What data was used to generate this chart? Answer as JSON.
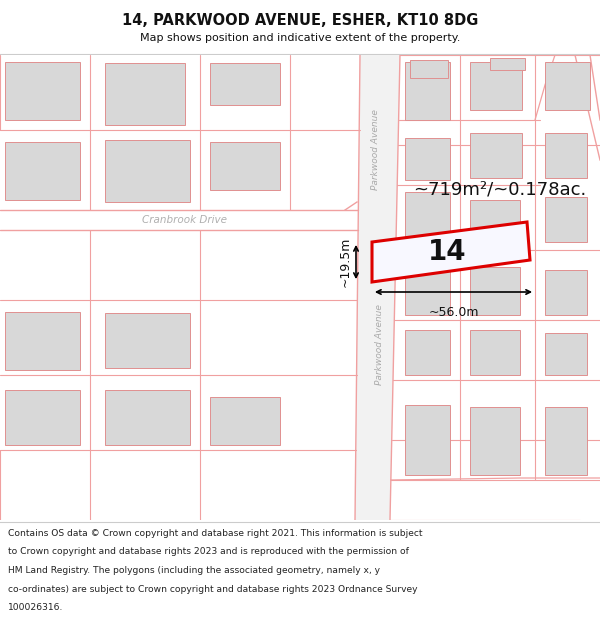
{
  "title": "14, PARKWOOD AVENUE, ESHER, KT10 8DG",
  "subtitle": "Map shows position and indicative extent of the property.",
  "footer_lines": [
    "Contains OS data © Crown copyright and database right 2021. This information is subject",
    "to Crown copyright and database rights 2023 and is reproduced with the permission of",
    "HM Land Registry. The polygons (including the associated geometry, namely x, y",
    "co-ordinates) are subject to Crown copyright and database rights 2023 Ordnance Survey",
    "100026316."
  ],
  "area_label": "~719m²/~0.178ac.",
  "dim_width": "~56.0m",
  "dim_height": "~19.5m",
  "property_number": "14",
  "street_parkwood": "Parkwood Avenue",
  "street_cranbrook": "Cranbrook Drive",
  "bg_color": "#ffffff",
  "rl": "#f0a0a0",
  "bf": "#d8d8d8",
  "be": "#e09090",
  "ps": "#dd0000",
  "pf": "#f8f8ff",
  "tc": "#111111",
  "sc": "#b0b0b0",
  "hsc": "#cccccc",
  "ftc": "#222222"
}
